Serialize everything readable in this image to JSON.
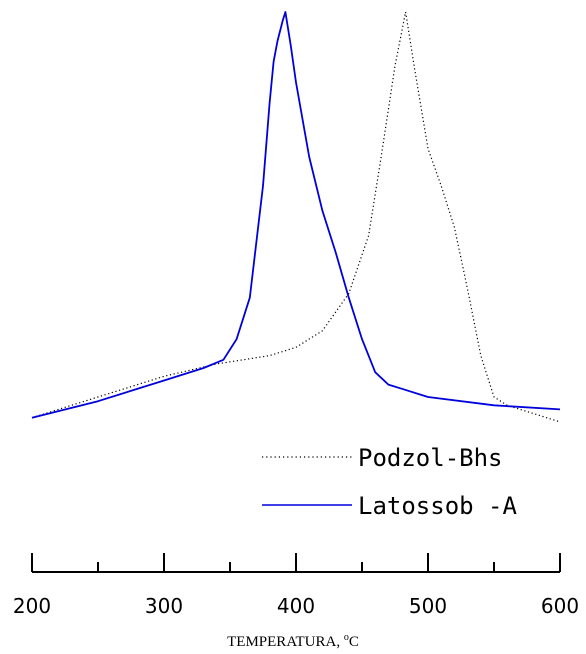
{
  "chart_data": {
    "type": "line",
    "xlabel": "TEMPERATURA, ",
    "xlabel_unit": "C",
    "xlabel_degree": "o",
    "xlim": [
      200,
      600
    ],
    "ylim": [
      0,
      1
    ],
    "y_axis_visible": false,
    "grid": false,
    "legend_position": "bottom-right",
    "x_ticks": [
      200,
      300,
      400,
      500,
      600
    ],
    "x_minor_ticks": [
      250,
      350,
      450,
      550
    ],
    "series": [
      {
        "name": "Podzol-Bhs",
        "style": "dotted",
        "color": "#000000",
        "x": [
          200,
          250,
          300,
          340,
          360,
          380,
          400,
          420,
          440,
          455,
          465,
          475,
          483,
          490,
          500,
          510,
          520,
          530,
          540,
          550,
          560,
          580,
          600
        ],
        "y": [
          0.02,
          0.07,
          0.12,
          0.15,
          0.16,
          0.17,
          0.19,
          0.23,
          0.32,
          0.46,
          0.66,
          0.87,
          1.0,
          0.86,
          0.67,
          0.58,
          0.48,
          0.33,
          0.17,
          0.07,
          0.05,
          0.03,
          0.01
        ]
      },
      {
        "name": "Latossob -A",
        "style": "solid",
        "color": "#0000dd",
        "x": [
          200,
          250,
          300,
          330,
          345,
          355,
          365,
          375,
          380,
          383,
          386,
          390,
          392,
          396,
          400,
          410,
          420,
          430,
          440,
          450,
          460,
          470,
          480,
          500,
          550,
          600
        ],
        "y": [
          0.02,
          0.06,
          0.11,
          0.14,
          0.16,
          0.21,
          0.31,
          0.58,
          0.78,
          0.88,
          0.93,
          0.98,
          1.0,
          0.92,
          0.83,
          0.65,
          0.52,
          0.42,
          0.31,
          0.21,
          0.13,
          0.1,
          0.09,
          0.07,
          0.05,
          0.04
        ]
      }
    ]
  }
}
